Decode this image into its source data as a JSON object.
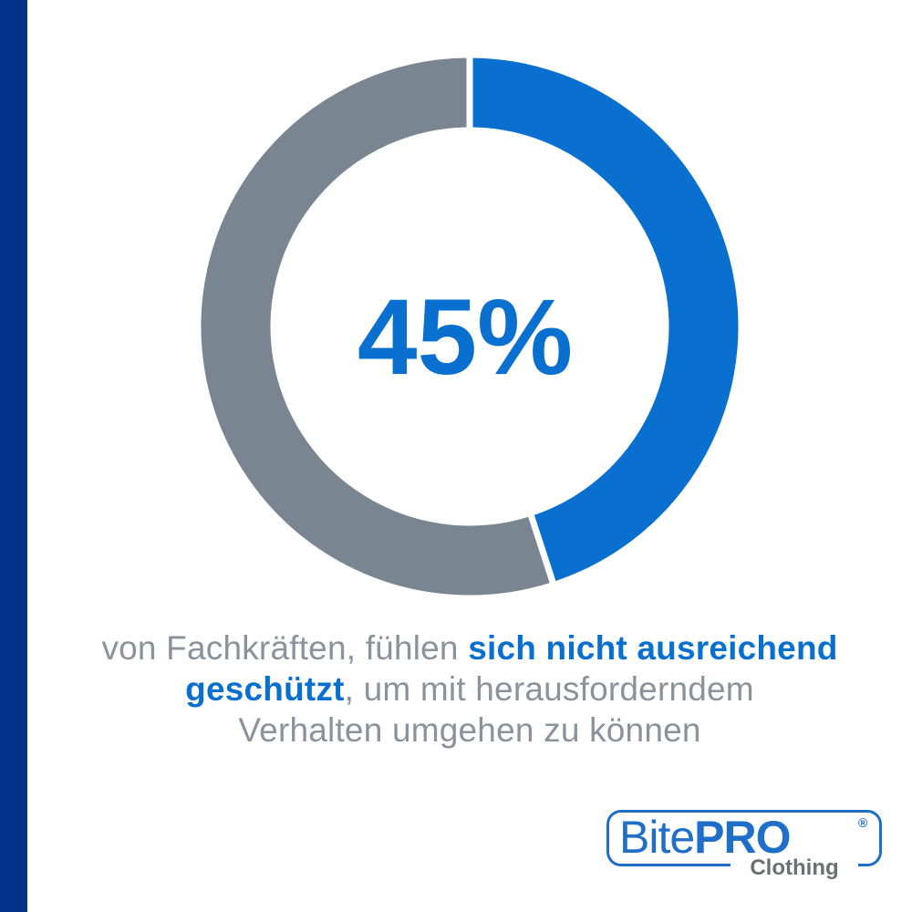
{
  "colors": {
    "sidebar": "#03328a",
    "accent": "#0a70d0",
    "remainder": "#7a8592",
    "caption_gray": "#8a929c",
    "logo_blue": "#1f6fc8",
    "logo_gray": "#6b6f73"
  },
  "chart_data": {
    "type": "pie",
    "variant": "donut",
    "categories": [
      "",
      ""
    ],
    "values": [
      45,
      55
    ],
    "unit": "%",
    "center_label": "45%"
  },
  "caption": {
    "part1": "von Fachkräften, fühlen ",
    "highlight1": "sich nicht ausreichend",
    "highlight2": "geschützt",
    "part2": ", um mit herausforderndem",
    "line3": "Verhalten umgehen zu können"
  },
  "logo": {
    "word1": "Bite",
    "word2": "PRO",
    "registered": "®",
    "sub": "Clothing"
  }
}
